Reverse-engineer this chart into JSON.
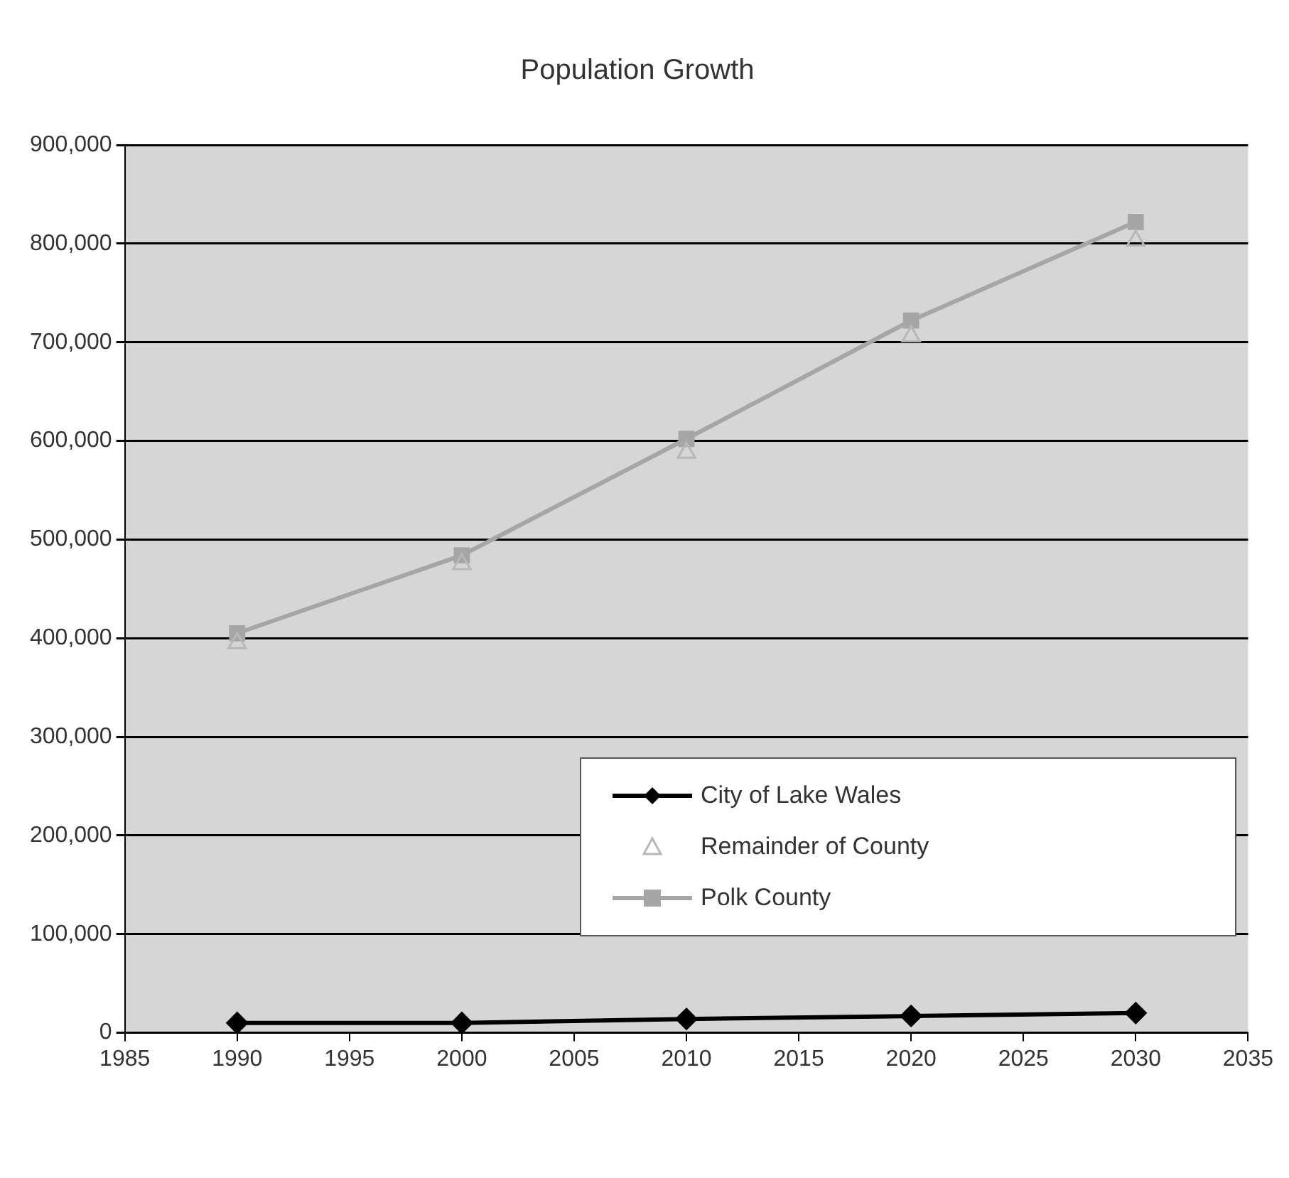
{
  "chart_data": {
    "type": "line",
    "title": "Population Growth",
    "x": [
      1990,
      2000,
      2010,
      2020,
      2030
    ],
    "series": [
      {
        "name": "City of Lake Wales",
        "color": "#000000",
        "marker": "diamond",
        "values": [
          10000,
          10000,
          14000,
          17000,
          20000
        ]
      },
      {
        "name": "Remainder of County",
        "type": "scatter",
        "color": "#b8b8b8",
        "marker": "triangle",
        "values": [
          395000,
          475000,
          588000,
          706000,
          803000
        ]
      },
      {
        "name": "Polk County",
        "color": "#a6a6a6",
        "marker": "square",
        "values": [
          405000,
          484000,
          602000,
          722000,
          822000
        ]
      }
    ],
    "xlim": [
      1985,
      2035
    ],
    "xticks": [
      1985,
      1990,
      1995,
      2000,
      2005,
      2010,
      2015,
      2020,
      2025,
      2030,
      2035
    ],
    "ylim": [
      0,
      900000
    ],
    "yticks": [
      0,
      {
        "value": 100000,
        "label": "100,000"
      },
      {
        "value": 200000,
        "label": "200,000"
      },
      {
        "value": 300000,
        "label": "300,000"
      },
      {
        "value": 400000,
        "label": "400,000"
      },
      {
        "value": 500000,
        "label": "500,000"
      },
      {
        "value": 600000,
        "label": "600,000"
      },
      {
        "value": 700000,
        "label": "700,000"
      },
      {
        "value": 800000,
        "label": "800,000"
      },
      {
        "value": 900000,
        "label": "900,000"
      }
    ],
    "grid": "y",
    "legend": "bottom right"
  }
}
